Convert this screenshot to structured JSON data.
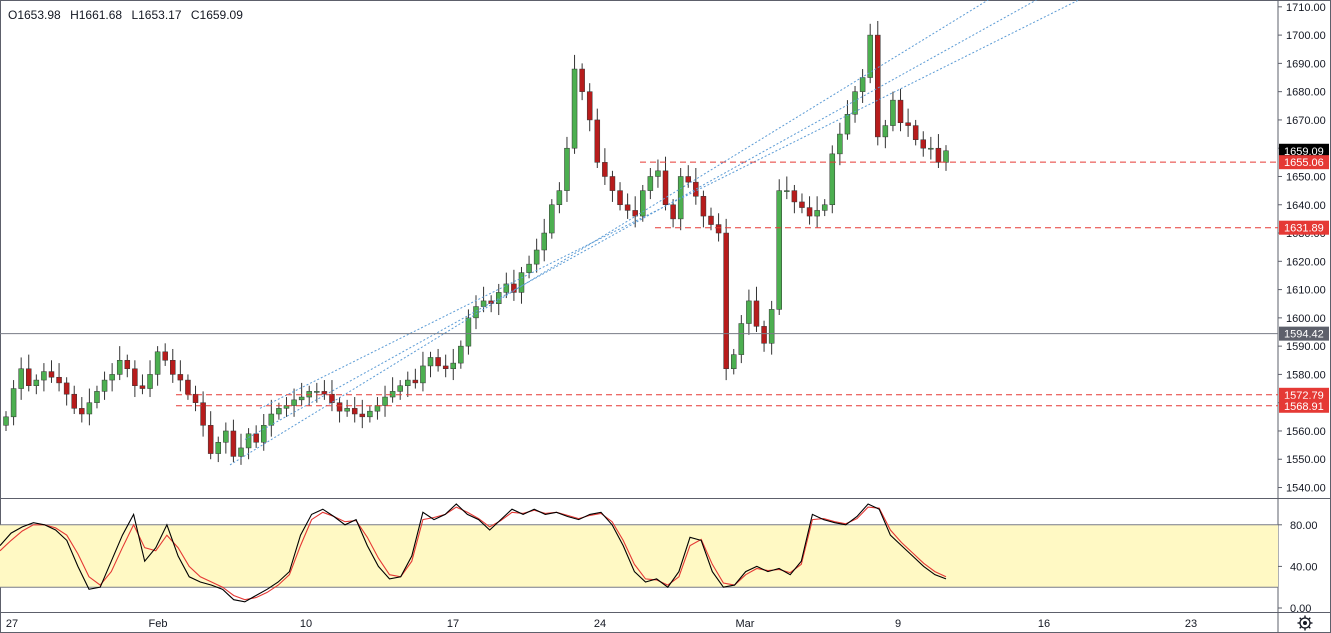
{
  "legend": {
    "open": "O1653.98",
    "high": "H1661.68",
    "low": "L1653.17",
    "close": "C1659.09"
  },
  "colors": {
    "up": "#26a69a",
    "down": "#ef5350",
    "up_body": "#4caf50",
    "down_body": "#b71c1c",
    "grid_line": "#787b86",
    "level_line": "#e53935",
    "channel": "#5b9bd5",
    "stoch_k": "#000000",
    "stoch_d": "#e53935",
    "stoch_band": "#fff9c4",
    "last_price_bg": "#000000",
    "level_bg": "#e53935",
    "ref_bg": "#5d606b"
  },
  "chart_data": [
    {
      "type": "candlestick",
      "title": "",
      "x_labels": [
        "27",
        "Feb",
        "10",
        "17",
        "24",
        "Mar",
        "9",
        "16",
        "23"
      ],
      "y_ticks": [
        1540,
        1550,
        1560,
        1570,
        1580,
        1590,
        1600,
        1610,
        1620,
        1630,
        1640,
        1650,
        1660,
        1670,
        1680,
        1690,
        1700,
        1710
      ],
      "ylim": [
        1537,
        1711
      ],
      "last_price": 1659.09,
      "levels": [
        1655.06,
        1631.89,
        1572.79,
        1568.91
      ],
      "reference_line": 1594.42,
      "closes": [
        1565,
        1575,
        1582,
        1576,
        1578,
        1581,
        1579,
        1577,
        1573,
        1568,
        1566,
        1570,
        1574,
        1578,
        1580,
        1585,
        1582,
        1576,
        1575,
        1580,
        1588,
        1585,
        1580,
        1578,
        1573,
        1570,
        1562,
        1552,
        1556,
        1560,
        1551,
        1554,
        1559,
        1556,
        1562,
        1566,
        1568,
        1569,
        1571,
        1572,
        1574,
        1574,
        1573,
        1570,
        1567,
        1568,
        1566,
        1565,
        1567,
        1569,
        1572,
        1574,
        1576,
        1578,
        1577,
        1583,
        1586,
        1583,
        1582,
        1584,
        1590,
        1600,
        1604,
        1606,
        1605,
        1609,
        1612,
        1609,
        1616,
        1619,
        1624,
        1630,
        1640,
        1645,
        1660,
        1688,
        1680,
        1670,
        1655,
        1650,
        1645,
        1640,
        1638,
        1636,
        1645,
        1650,
        1652,
        1640,
        1635,
        1650,
        1648,
        1643,
        1636,
        1633,
        1630,
        1582,
        1587,
        1598,
        1606,
        1597,
        1591,
        1603,
        1645,
        1645,
        1641,
        1639,
        1636,
        1638,
        1640,
        1658,
        1665,
        1672,
        1680,
        1685,
        1700,
        1664,
        1668,
        1677,
        1669,
        1668,
        1663,
        1660,
        1660,
        1655,
        1659.09
      ],
      "channel_start": [
        1548,
        1557,
        1568
      ],
      "channel_end": [
        1715,
        1720,
        1725
      ],
      "stoch_k": [
        60,
        72,
        78,
        82,
        80,
        75,
        65,
        40,
        18,
        20,
        45,
        70,
        90,
        45,
        58,
        80,
        50,
        30,
        25,
        22,
        18,
        8,
        6,
        12,
        18,
        25,
        35,
        70,
        90,
        95,
        88,
        80,
        85,
        60,
        40,
        28,
        30,
        50,
        92,
        85,
        90,
        100,
        90,
        85,
        75,
        85,
        95,
        90,
        95,
        90,
        92,
        88,
        85,
        90,
        92,
        80,
        60,
        35,
        25,
        28,
        20,
        35,
        68,
        65,
        35,
        20,
        22,
        35,
        40,
        35,
        38,
        32,
        45,
        90,
        85,
        82,
        80,
        88,
        100,
        95,
        70,
        60,
        50,
        40,
        32,
        28
      ],
      "stoch_d": [
        55,
        65,
        74,
        80,
        80,
        77,
        70,
        52,
        30,
        22,
        35,
        58,
        80,
        58,
        55,
        70,
        58,
        40,
        30,
        25,
        20,
        12,
        8,
        10,
        15,
        22,
        32,
        60,
        85,
        92,
        88,
        83,
        84,
        68,
        48,
        32,
        30,
        45,
        85,
        87,
        90,
        97,
        92,
        86,
        78,
        84,
        92,
        91,
        94,
        91,
        92,
        89,
        86,
        89,
        91,
        83,
        65,
        42,
        28,
        27,
        22,
        30,
        60,
        66,
        42,
        24,
        22,
        32,
        38,
        36,
        37,
        34,
        42,
        85,
        86,
        83,
        81,
        86,
        97,
        96,
        75,
        63,
        53,
        43,
        35,
        30
      ],
      "stoch_ticks": [
        0,
        20,
        40,
        60,
        80
      ],
      "stoch_band": [
        20,
        80
      ],
      "stoch_labels": [
        "80.00",
        "40.00",
        "0.00"
      ]
    }
  ]
}
